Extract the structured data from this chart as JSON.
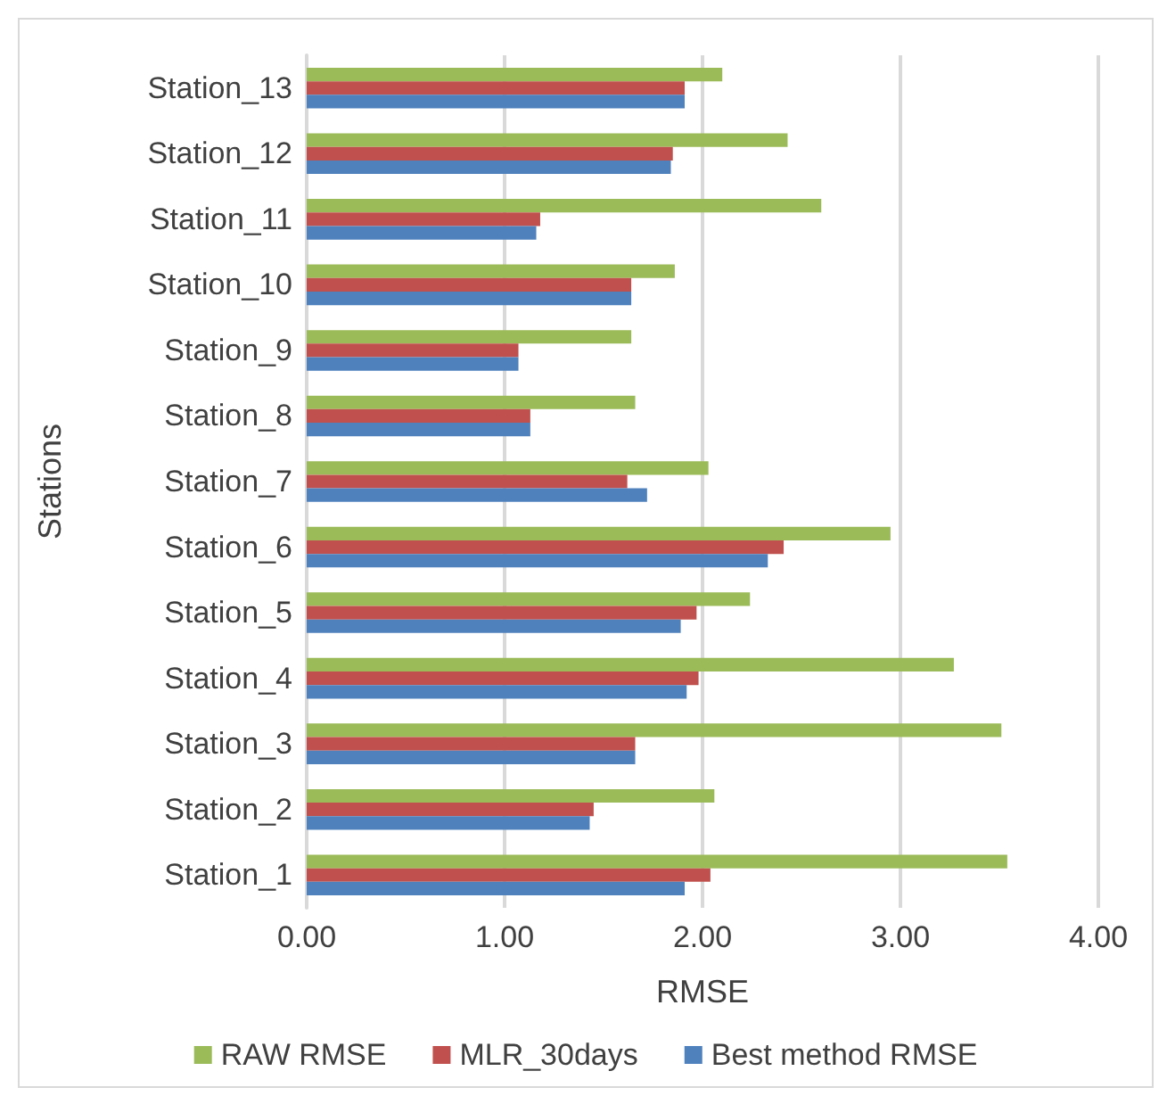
{
  "chart_data": {
    "type": "bar",
    "orientation": "horizontal",
    "xlabel": "RMSE",
    "ylabel": "Stations",
    "categories": [
      "Station_13",
      "Station_12",
      "Station_11",
      "Station_10",
      "Station_9",
      "Station_8",
      "Station_7",
      "Station_6",
      "Station_5",
      "Station_4",
      "Station_3",
      "Station_2",
      "Station_1"
    ],
    "series": [
      {
        "name": "RAW RMSE",
        "color": "#9bbb59",
        "values": [
          2.1,
          2.43,
          2.6,
          1.86,
          1.64,
          1.66,
          2.03,
          2.95,
          2.24,
          3.27,
          3.51,
          2.06,
          3.54
        ]
      },
      {
        "name": "MLR_30days",
        "color": "#c0504d",
        "values": [
          1.91,
          1.85,
          1.18,
          1.64,
          1.07,
          1.13,
          1.62,
          2.41,
          1.97,
          1.98,
          1.66,
          1.45,
          2.04
        ]
      },
      {
        "name": "Best method RMSE",
        "color": "#4f81bd",
        "values": [
          1.91,
          1.84,
          1.16,
          1.64,
          1.07,
          1.13,
          1.72,
          2.33,
          1.89,
          1.92,
          1.66,
          1.43,
          1.91
        ]
      }
    ],
    "xlim": [
      0,
      4
    ],
    "xticks": [
      {
        "value": 0,
        "label": "0.00"
      },
      {
        "value": 1,
        "label": "1.00"
      },
      {
        "value": 2,
        "label": "2.00"
      },
      {
        "value": 3,
        "label": "3.00"
      },
      {
        "value": 4,
        "label": "4.00"
      }
    ],
    "grid": "x",
    "legend": "bottom"
  }
}
